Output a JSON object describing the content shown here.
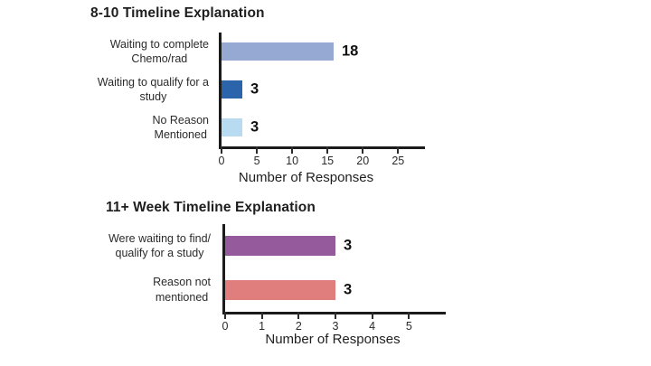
{
  "chart_data": [
    {
      "type": "bar",
      "orientation": "horizontal",
      "title": "8-10 Timeline Explanation",
      "xlabel": "Number of Responses",
      "categories": [
        "Waiting to complete\nChemo/rad",
        "Waiting to qualify for a\nstudy",
        "No Reason\nMentioned"
      ],
      "values": [
        18,
        3,
        3
      ],
      "bar_colors": [
        "#96a9d3",
        "#2b64ab",
        "#b8dbf2"
      ],
      "xticks": [
        0,
        5,
        10,
        15,
        20,
        25
      ],
      "xlim": [
        0,
        28.8
      ],
      "grid": false,
      "legend": "none"
    },
    {
      "type": "bar",
      "orientation": "horizontal",
      "title": "11+ Week Timeline Explanation",
      "xlabel": "Number of Responses",
      "categories": [
        "Were waiting to find/\nqualify for a study",
        "Reason not\nmentioned"
      ],
      "values": [
        3,
        3
      ],
      "bar_colors": [
        "#955a9b",
        "#e07e7d"
      ],
      "xticks": [
        0,
        1,
        2,
        3,
        4,
        5
      ],
      "xlim": [
        0,
        6
      ],
      "grid": false,
      "legend": "none"
    }
  ],
  "colors": {
    "axis": "#1b1b1b",
    "title_text": "#1e1e1e",
    "label_text": "#2b2b2b",
    "value_text": "#111111"
  }
}
